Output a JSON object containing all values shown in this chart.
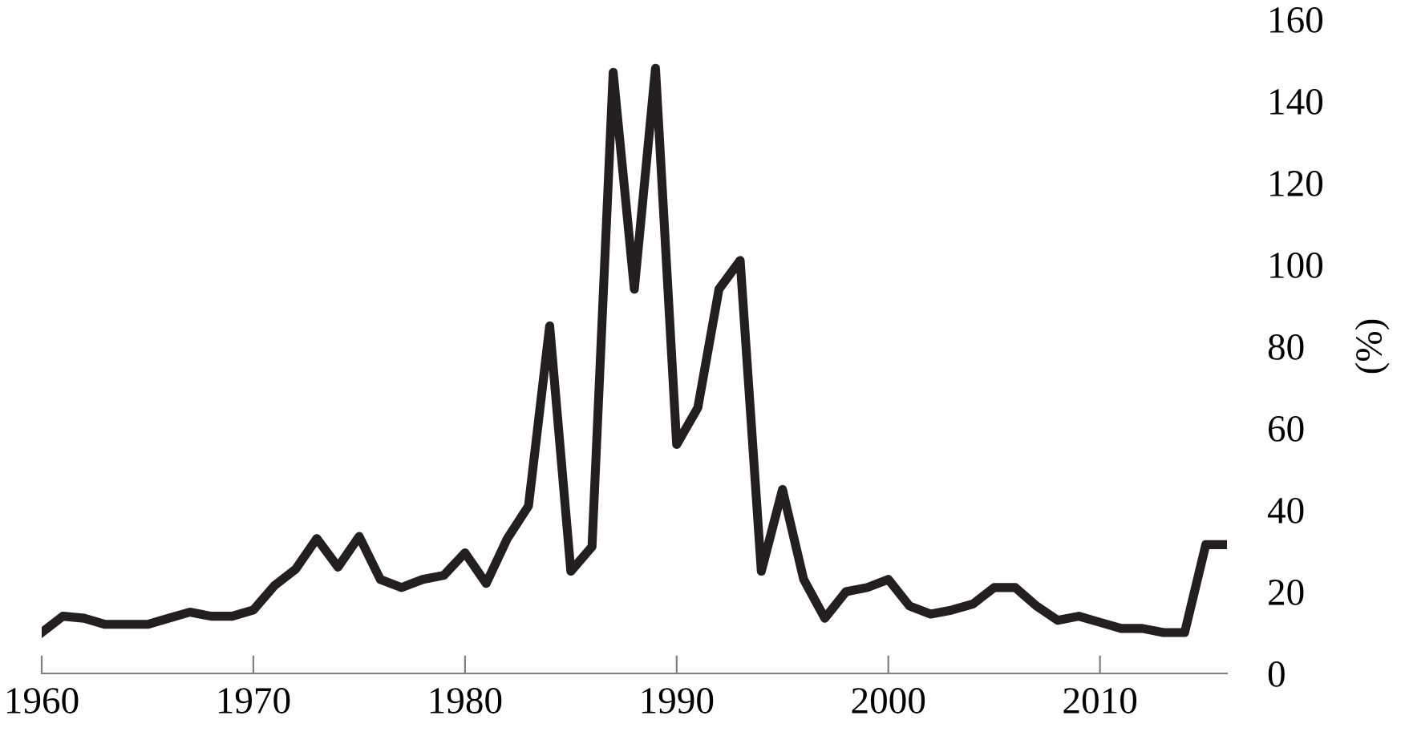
{
  "chart_data": {
    "type": "line",
    "ylabel": "(%)",
    "x": [
      1960,
      1961,
      1962,
      1963,
      1964,
      1965,
      1966,
      1967,
      1968,
      1969,
      1970,
      1971,
      1972,
      1973,
      1974,
      1975,
      1976,
      1977,
      1978,
      1979,
      1980,
      1981,
      1982,
      1983,
      1984,
      1985,
      1986,
      1987,
      1988,
      1989,
      1990,
      1991,
      1992,
      1993,
      1994,
      1995,
      1996,
      1997,
      1998,
      1999,
      2000,
      2001,
      2002,
      2003,
      2004,
      2005,
      2006,
      2007,
      2008,
      2009,
      2010,
      2011,
      2012,
      2013,
      2014,
      2015,
      2016
    ],
    "series": [
      {
        "color": "#231f20",
        "values": [
          10,
          14,
          13.5,
          12,
          12,
          12,
          13.5,
          15,
          14,
          14,
          15.5,
          21.5,
          25.5,
          33,
          26,
          33.5,
          23,
          21,
          23,
          24,
          29.5,
          22,
          33,
          41,
          85,
          25,
          31,
          147,
          94,
          148,
          56,
          65,
          94,
          101,
          25,
          45,
          23,
          13.5,
          20,
          21,
          23,
          16.5,
          14.5,
          15.5,
          17,
          21,
          21,
          16.5,
          13,
          14,
          12.5,
          11,
          11,
          10,
          10,
          31.5,
          31.5
        ]
      }
    ],
    "xlim": [
      1960,
      2016
    ],
    "xticks": [
      1960,
      1970,
      1980,
      1990,
      2000,
      2010
    ],
    "ylim": [
      0,
      160
    ],
    "yticks": [
      0,
      20,
      40,
      60,
      80,
      100,
      120,
      140,
      160
    ],
    "grid": false,
    "legend": false,
    "marker": "none",
    "line_style": "solid"
  }
}
